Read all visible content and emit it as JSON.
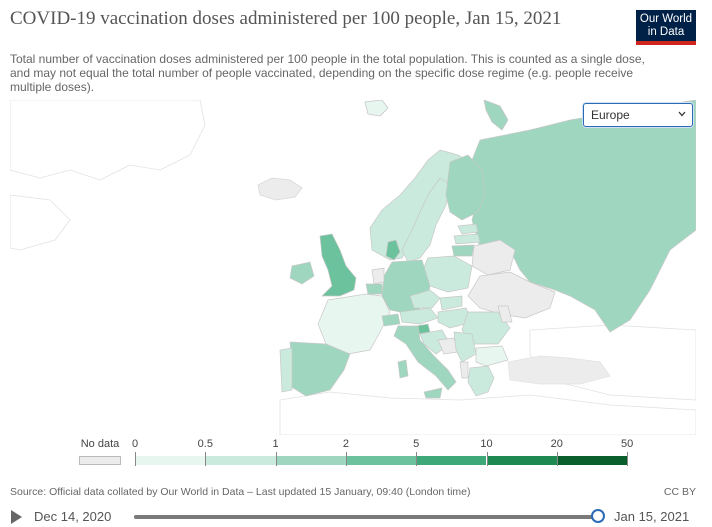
{
  "header": {
    "title": "COVID-19 vaccination doses administered per 100 people, Jan 15, 2021",
    "subtitle": "Total number of vaccination doses administered per 100 people in the total population. This is counted as a single dose, and may not equal the total number of people vaccinated, depending on the specific dose regime (e.g. people receive multiple doses).",
    "logo_line1": "Our World",
    "logo_line2": "in Data"
  },
  "region_select": {
    "selected": "Europe"
  },
  "legend": {
    "no_data_label": "No data",
    "no_data_color": "#ececec",
    "bins": [
      {
        "from": "0",
        "to": "0.5",
        "color": "#e8f6f0"
      },
      {
        "from": "0.5",
        "to": "1",
        "color": "#c9eadc"
      },
      {
        "from": "1",
        "to": "2",
        "color": "#9fd6bf"
      },
      {
        "from": "2",
        "to": "5",
        "color": "#6cc29d"
      },
      {
        "from": "5",
        "to": "10",
        "color": "#3fa878"
      },
      {
        "from": "10",
        "to": "20",
        "color": "#1e8a52"
      },
      {
        "from": "20",
        "to": "50",
        "color": "#0a5e2c"
      }
    ],
    "tick_labels": [
      "0",
      "0.5",
      "1",
      "2",
      "5",
      "10",
      "20",
      "50"
    ]
  },
  "map": {
    "region": "Europe",
    "colors": {
      "background_land": "#ffffff",
      "outline": "#d8d8d8",
      "no_data": "#ececec"
    }
  },
  "footer": {
    "source": "Source: Official data collated by Our World in Data – Last updated 15 January, 09:40 (London time)",
    "license": "CC BY"
  },
  "timeline": {
    "start_label": "Dec 14, 2020",
    "end_label": "Jan 15, 2021",
    "position": 1.0
  }
}
